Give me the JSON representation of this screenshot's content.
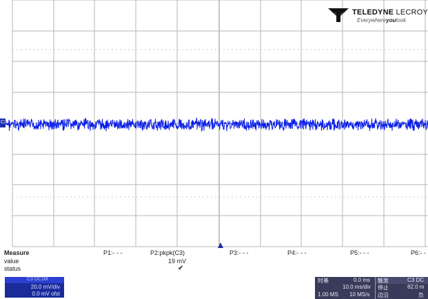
{
  "logo": {
    "brand_bold": "TELEDYNE",
    "brand_light": "LECROY",
    "tagline_pre": "Everywhere",
    "tagline_bold": "you",
    "tagline_post": "look"
  },
  "channel": {
    "label": "C3",
    "color": "#1d2fa8"
  },
  "measure": {
    "title": "Measure",
    "row_value": "value",
    "row_status": "status",
    "params": [
      {
        "label": "P1:- - -",
        "value": "",
        "status": ""
      },
      {
        "label": "P2:pkpk(C3)",
        "value": "19 mV",
        "status": "✔"
      },
      {
        "label": "P3:- - -",
        "value": "",
        "status": ""
      },
      {
        "label": "P4:- - -",
        "value": "",
        "status": ""
      },
      {
        "label": "P5:- - -",
        "value": "",
        "status": ""
      },
      {
        "label": "P6:- -",
        "value": "",
        "status": ""
      }
    ]
  },
  "channel_box": {
    "header": "C3  DC1M",
    "volts_div": "20.0 mV/div",
    "offset": "0.0 mV ofst"
  },
  "timebase_box": {
    "title": "时基",
    "delay": "0.0 ms",
    "time_div": "10.0 ms/div",
    "samples": "1.00 MS",
    "rate": "10 MS/s",
    "trigger_title": "触发",
    "trigger_tag": "C3 DC",
    "mode": "停止",
    "level": "82.0 m",
    "edge": "边沿",
    "edge_val": "负"
  },
  "colors": {
    "trace": "#0a1ee6",
    "grid": "#9a9a9a",
    "background": "#ffffff"
  }
}
